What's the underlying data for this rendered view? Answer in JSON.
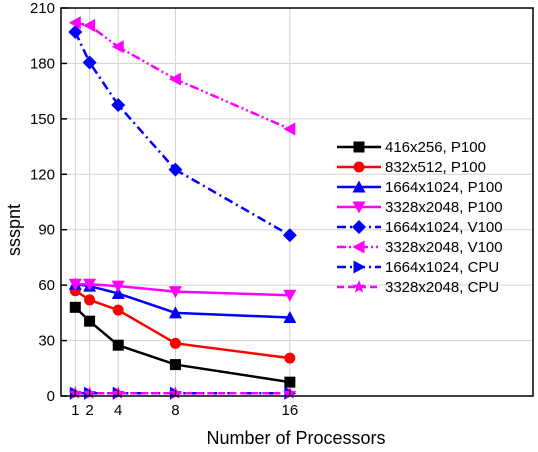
{
  "chart_data": {
    "type": "line",
    "xlabel": "Number of Processors",
    "ylabel": "ssspnt",
    "xlim": [
      0,
      33
    ],
    "ylim": [
      0,
      210
    ],
    "x_ticks": [
      1,
      2,
      4,
      8,
      16
    ],
    "y_ticks": [
      0,
      30,
      60,
      90,
      120,
      150,
      180,
      210
    ],
    "grid": true,
    "legend_position": "right",
    "x": [
      1,
      2,
      4,
      8,
      16
    ],
    "series": [
      {
        "name": "416x256, P100",
        "values": [
          48,
          40.5,
          27.5,
          17,
          7.5
        ],
        "color": "#000000",
        "marker": "square",
        "dash": "solid"
      },
      {
        "name": "832x512, P100",
        "values": [
          57,
          52,
          46.5,
          28.5,
          20.5
        ],
        "color": "#ff0000",
        "marker": "circle",
        "dash": "solid"
      },
      {
        "name": "1664x1024, P100",
        "values": [
          60.5,
          59.5,
          55.5,
          45,
          42.5
        ],
        "color": "#0000ff",
        "marker": "triangle-up",
        "dash": "solid"
      },
      {
        "name": "3328x2048, P100",
        "values": [
          60.5,
          60.5,
          59.5,
          56.5,
          54.5
        ],
        "color": "#ff00ff",
        "marker": "triangle-down",
        "dash": "solid"
      },
      {
        "name": "1664x1024, V100",
        "values": [
          197,
          180.5,
          157.5,
          122.5,
          87
        ],
        "color": "#0000ff",
        "marker": "diamond",
        "dash": "dashdot"
      },
      {
        "name": "3328x2048, V100",
        "values": [
          202,
          200.5,
          189,
          171.5,
          144.5
        ],
        "color": "#ff00ff",
        "marker": "triangle-left",
        "dash": "dashdotdot"
      },
      {
        "name": "1664x1024, CPU",
        "values": [
          1.5,
          1.5,
          1.5,
          1.5,
          1.5
        ],
        "color": "#0000ff",
        "marker": "triangle-right",
        "dash": "dashdot"
      },
      {
        "name": "3328x2048, CPU",
        "values": [
          1.5,
          1.5,
          1.5,
          1.5,
          1.5
        ],
        "color": "#ff00ff",
        "marker": "star",
        "dash": "dash"
      }
    ]
  }
}
